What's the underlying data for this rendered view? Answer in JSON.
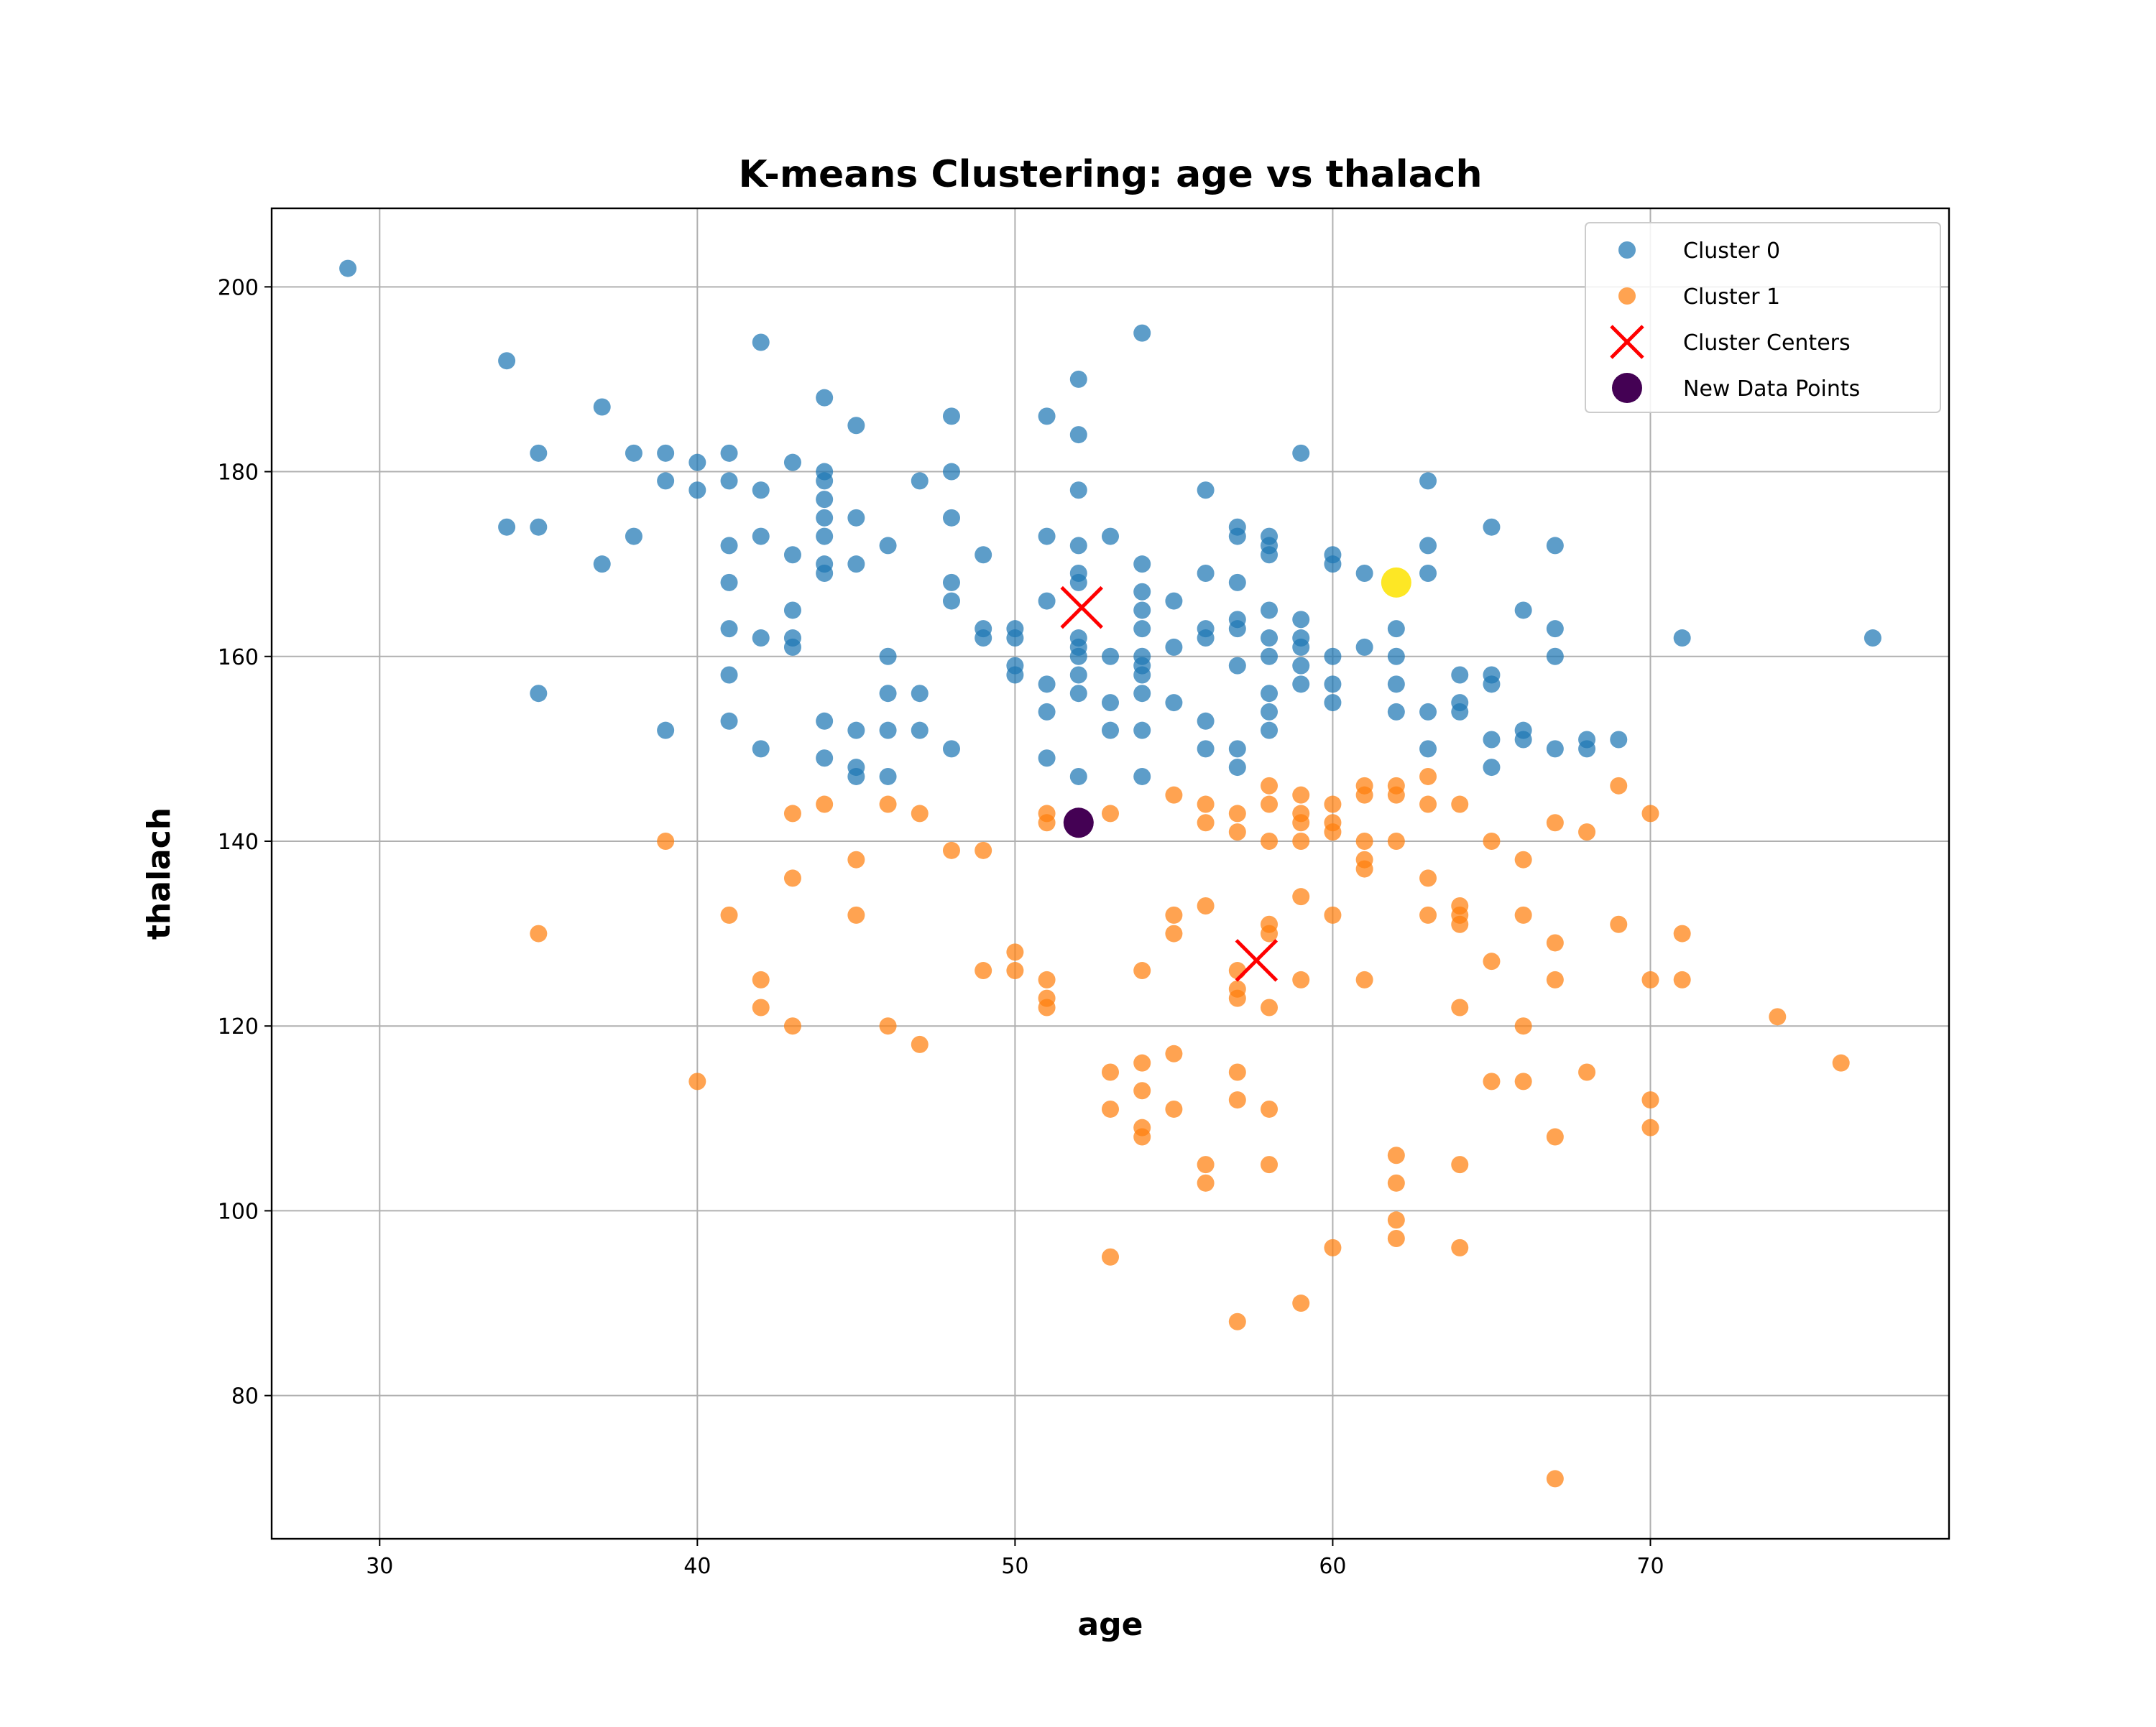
{
  "chart_data": {
    "type": "scatter",
    "title": "K-means Clustering: age vs thalach",
    "xlabel": "age",
    "ylabel": "thalach",
    "xlim": [
      26.6,
      79.4
    ],
    "ylim": [
      64.5,
      208.5
    ],
    "xticks": [
      30,
      40,
      50,
      60,
      70
    ],
    "yticks": [
      80,
      100,
      120,
      140,
      160,
      180,
      200
    ],
    "grid": true,
    "legend_position": "top-right",
    "colors": {
      "cluster_0": "#1f77b4",
      "cluster_1": "#ff7f0e",
      "centers": "#ff0000",
      "new_point_0": "#440154",
      "new_point_1": "#fde725"
    },
    "legend": [
      {
        "label": "Cluster 0",
        "marker": "circle",
        "color": "#1f77b4"
      },
      {
        "label": "Cluster 1",
        "marker": "circle",
        "color": "#ff7f0e"
      },
      {
        "label": "Cluster Centers",
        "marker": "x",
        "color": "#ff0000"
      },
      {
        "label": "New Data Points",
        "marker": "circle-large",
        "color": "#440154"
      }
    ],
    "series": [
      {
        "name": "Cluster 0",
        "points": [
          [
            29,
            202
          ],
          [
            34,
            192
          ],
          [
            34,
            174
          ],
          [
            35,
            182
          ],
          [
            35,
            174
          ],
          [
            35,
            156
          ],
          [
            37,
            187
          ],
          [
            37,
            170
          ],
          [
            38,
            182
          ],
          [
            38,
            173
          ],
          [
            39,
            182
          ],
          [
            39,
            179
          ],
          [
            39,
            152
          ],
          [
            40,
            181
          ],
          [
            40,
            178
          ],
          [
            41,
            182
          ],
          [
            41,
            179
          ],
          [
            41,
            172
          ],
          [
            41,
            168
          ],
          [
            41,
            163
          ],
          [
            41,
            158
          ],
          [
            41,
            153
          ],
          [
            42,
            194
          ],
          [
            42,
            178
          ],
          [
            42,
            173
          ],
          [
            42,
            162
          ],
          [
            42,
            150
          ],
          [
            43,
            181
          ],
          [
            43,
            171
          ],
          [
            43,
            165
          ],
          [
            43,
            162
          ],
          [
            43,
            161
          ],
          [
            44,
            188
          ],
          [
            44,
            180
          ],
          [
            44,
            179
          ],
          [
            44,
            177
          ],
          [
            44,
            175
          ],
          [
            44,
            173
          ],
          [
            44,
            170
          ],
          [
            44,
            169
          ],
          [
            44,
            153
          ],
          [
            44,
            149
          ],
          [
            45,
            185
          ],
          [
            45,
            175
          ],
          [
            45,
            170
          ],
          [
            45,
            152
          ],
          [
            45,
            148
          ],
          [
            45,
            147
          ],
          [
            46,
            172
          ],
          [
            46,
            160
          ],
          [
            46,
            156
          ],
          [
            46,
            152
          ],
          [
            46,
            147
          ],
          [
            47,
            179
          ],
          [
            47,
            156
          ],
          [
            47,
            152
          ],
          [
            48,
            186
          ],
          [
            48,
            180
          ],
          [
            48,
            175
          ],
          [
            48,
            168
          ],
          [
            48,
            166
          ],
          [
            48,
            150
          ],
          [
            49,
            171
          ],
          [
            49,
            163
          ],
          [
            49,
            162
          ],
          [
            50,
            163
          ],
          [
            50,
            162
          ],
          [
            50,
            159
          ],
          [
            50,
            158
          ],
          [
            51,
            186
          ],
          [
            51,
            173
          ],
          [
            51,
            166
          ],
          [
            51,
            157
          ],
          [
            51,
            154
          ],
          [
            51,
            149
          ],
          [
            52,
            190
          ],
          [
            52,
            184
          ],
          [
            52,
            178
          ],
          [
            52,
            172
          ],
          [
            52,
            169
          ],
          [
            52,
            168
          ],
          [
            52,
            162
          ],
          [
            52,
            161
          ],
          [
            52,
            160
          ],
          [
            52,
            158
          ],
          [
            52,
            156
          ],
          [
            52,
            147
          ],
          [
            53,
            173
          ],
          [
            53,
            160
          ],
          [
            53,
            155
          ],
          [
            53,
            152
          ],
          [
            54,
            195
          ],
          [
            54,
            170
          ],
          [
            54,
            167
          ],
          [
            54,
            165
          ],
          [
            54,
            163
          ],
          [
            54,
            160
          ],
          [
            54,
            159
          ],
          [
            54,
            158
          ],
          [
            54,
            156
          ],
          [
            54,
            152
          ],
          [
            54,
            147
          ],
          [
            55,
            166
          ],
          [
            55,
            161
          ],
          [
            55,
            155
          ],
          [
            56,
            178
          ],
          [
            56,
            169
          ],
          [
            56,
            163
          ],
          [
            56,
            162
          ],
          [
            56,
            153
          ],
          [
            56,
            150
          ],
          [
            57,
            174
          ],
          [
            57,
            173
          ],
          [
            57,
            168
          ],
          [
            57,
            164
          ],
          [
            57,
            163
          ],
          [
            57,
            159
          ],
          [
            57,
            150
          ],
          [
            57,
            148
          ],
          [
            58,
            173
          ],
          [
            58,
            172
          ],
          [
            58,
            171
          ],
          [
            58,
            165
          ],
          [
            58,
            162
          ],
          [
            58,
            160
          ],
          [
            58,
            156
          ],
          [
            58,
            154
          ],
          [
            58,
            152
          ],
          [
            59,
            182
          ],
          [
            59,
            164
          ],
          [
            59,
            162
          ],
          [
            59,
            161
          ],
          [
            59,
            159
          ],
          [
            59,
            157
          ],
          [
            60,
            171
          ],
          [
            60,
            170
          ],
          [
            60,
            160
          ],
          [
            60,
            157
          ],
          [
            60,
            155
          ],
          [
            61,
            169
          ],
          [
            61,
            161
          ],
          [
            62,
            163
          ],
          [
            62,
            160
          ],
          [
            62,
            157
          ],
          [
            62,
            154
          ],
          [
            63,
            179
          ],
          [
            63,
            172
          ],
          [
            63,
            169
          ],
          [
            63,
            154
          ],
          [
            63,
            150
          ],
          [
            64,
            158
          ],
          [
            64,
            155
          ],
          [
            64,
            154
          ],
          [
            65,
            174
          ],
          [
            65,
            158
          ],
          [
            65,
            157
          ],
          [
            65,
            151
          ],
          [
            65,
            148
          ],
          [
            66,
            165
          ],
          [
            66,
            152
          ],
          [
            66,
            151
          ],
          [
            67,
            172
          ],
          [
            67,
            163
          ],
          [
            67,
            160
          ],
          [
            67,
            150
          ],
          [
            68,
            151
          ],
          [
            68,
            150
          ],
          [
            69,
            151
          ],
          [
            71,
            162
          ],
          [
            77,
            162
          ]
        ]
      },
      {
        "name": "Cluster 1",
        "points": [
          [
            35,
            130
          ],
          [
            39,
            140
          ],
          [
            40,
            114
          ],
          [
            41,
            132
          ],
          [
            42,
            125
          ],
          [
            42,
            122
          ],
          [
            43,
            143
          ],
          [
            43,
            136
          ],
          [
            43,
            120
          ],
          [
            44,
            144
          ],
          [
            45,
            138
          ],
          [
            45,
            132
          ],
          [
            46,
            144
          ],
          [
            46,
            120
          ],
          [
            47,
            143
          ],
          [
            47,
            118
          ],
          [
            48,
            139
          ],
          [
            49,
            139
          ],
          [
            49,
            126
          ],
          [
            50,
            128
          ],
          [
            50,
            126
          ],
          [
            51,
            143
          ],
          [
            51,
            142
          ],
          [
            51,
            125
          ],
          [
            51,
            123
          ],
          [
            51,
            122
          ],
          [
            53,
            143
          ],
          [
            53,
            115
          ],
          [
            53,
            111
          ],
          [
            53,
            95
          ],
          [
            54,
            126
          ],
          [
            54,
            116
          ],
          [
            54,
            113
          ],
          [
            54,
            109
          ],
          [
            54,
            108
          ],
          [
            55,
            145
          ],
          [
            55,
            132
          ],
          [
            55,
            130
          ],
          [
            55,
            117
          ],
          [
            55,
            111
          ],
          [
            56,
            144
          ],
          [
            56,
            142
          ],
          [
            56,
            133
          ],
          [
            56,
            105
          ],
          [
            56,
            103
          ],
          [
            57,
            143
          ],
          [
            57,
            141
          ],
          [
            57,
            126
          ],
          [
            57,
            124
          ],
          [
            57,
            123
          ],
          [
            57,
            115
          ],
          [
            57,
            112
          ],
          [
            57,
            88
          ],
          [
            58,
            146
          ],
          [
            58,
            144
          ],
          [
            58,
            140
          ],
          [
            58,
            131
          ],
          [
            58,
            130
          ],
          [
            58,
            122
          ],
          [
            58,
            111
          ],
          [
            58,
            105
          ],
          [
            59,
            145
          ],
          [
            59,
            143
          ],
          [
            59,
            142
          ],
          [
            59,
            140
          ],
          [
            59,
            134
          ],
          [
            59,
            125
          ],
          [
            59,
            90
          ],
          [
            60,
            144
          ],
          [
            60,
            142
          ],
          [
            60,
            141
          ],
          [
            60,
            132
          ],
          [
            60,
            96
          ],
          [
            61,
            146
          ],
          [
            61,
            145
          ],
          [
            61,
            140
          ],
          [
            61,
            138
          ],
          [
            61,
            137
          ],
          [
            61,
            125
          ],
          [
            62,
            146
          ],
          [
            62,
            145
          ],
          [
            62,
            140
          ],
          [
            62,
            106
          ],
          [
            62,
            103
          ],
          [
            62,
            99
          ],
          [
            62,
            97
          ],
          [
            63,
            147
          ],
          [
            63,
            144
          ],
          [
            63,
            136
          ],
          [
            63,
            132
          ],
          [
            64,
            144
          ],
          [
            64,
            133
          ],
          [
            64,
            132
          ],
          [
            64,
            131
          ],
          [
            64,
            122
          ],
          [
            64,
            105
          ],
          [
            64,
            96
          ],
          [
            65,
            140
          ],
          [
            65,
            127
          ],
          [
            65,
            114
          ],
          [
            66,
            138
          ],
          [
            66,
            132
          ],
          [
            66,
            120
          ],
          [
            66,
            114
          ],
          [
            67,
            142
          ],
          [
            67,
            129
          ],
          [
            67,
            125
          ],
          [
            67,
            108
          ],
          [
            67,
            71
          ],
          [
            68,
            141
          ],
          [
            68,
            115
          ],
          [
            69,
            146
          ],
          [
            69,
            131
          ],
          [
            70,
            143
          ],
          [
            70,
            125
          ],
          [
            70,
            112
          ],
          [
            70,
            109
          ],
          [
            71,
            130
          ],
          [
            71,
            125
          ],
          [
            74,
            121
          ],
          [
            76,
            116
          ]
        ]
      },
      {
        "name": "Cluster Centers",
        "points": [
          [
            52.1,
            165.3
          ],
          [
            57.6,
            127.1
          ]
        ]
      },
      {
        "name": "New Data Points",
        "points": [
          [
            52,
            142,
            "#440154"
          ],
          [
            62,
            168,
            "#fde725"
          ]
        ]
      }
    ]
  }
}
